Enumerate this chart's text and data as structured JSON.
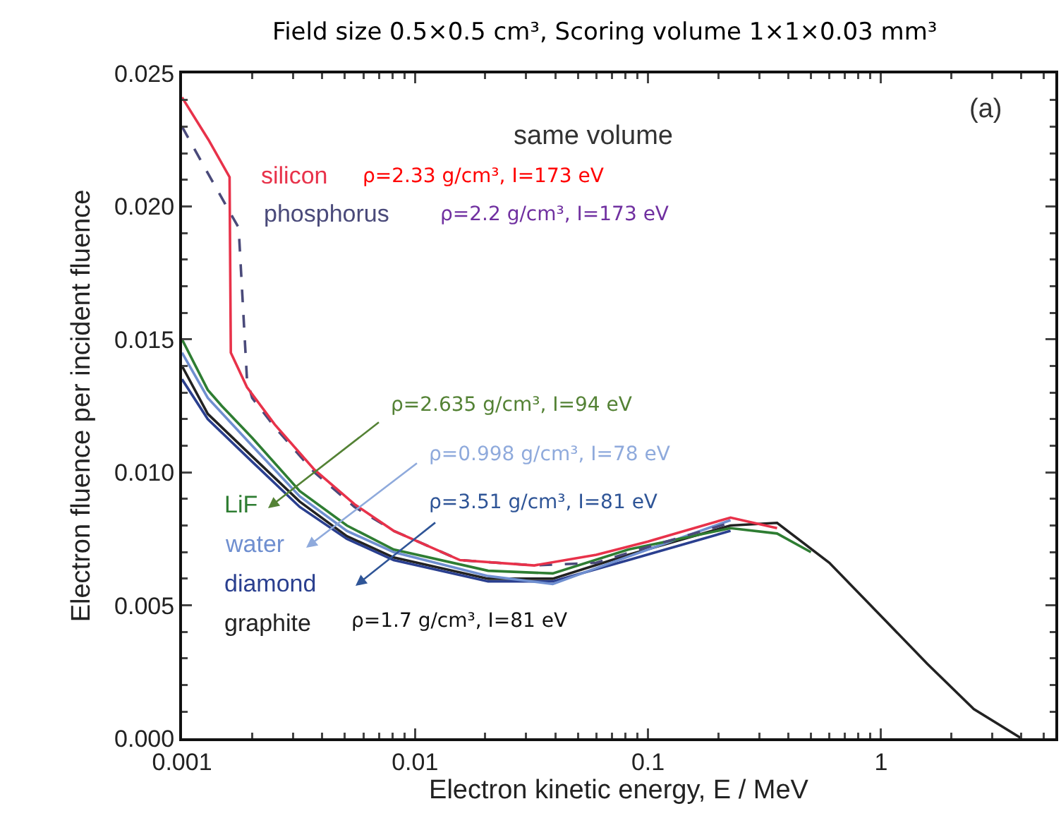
{
  "chart_data": {
    "type": "line",
    "title": "Field size 0.5×0.5 cm³, Scoring volume 1×1×0.03 mm³",
    "xlabel": "Electron kinetic energy, E / MeV",
    "ylabel": "Electron fluence per incident fluence",
    "log": "x",
    "xlim": [
      0.001,
      5.6
    ],
    "xticks": [
      0.001,
      0.01,
      0.1,
      1
    ],
    "ylim": [
      0,
      0.025
    ],
    "yticks": [
      {
        "value": 0,
        "label": "0.000"
      },
      0.005,
      {
        "value": 0.01,
        "label": "0.010"
      },
      0.015,
      {
        "value": 0.02,
        "label": "0.020"
      },
      0.025
    ],
    "grid": false,
    "legend": false,
    "marker": "none",
    "series": [
      {
        "name": "silicon",
        "color": "#e8324a",
        "line_style": "solid",
        "x": [
          0.001,
          0.0013,
          0.0016,
          0.00162,
          0.0019,
          0.0025,
          0.0037,
          0.0055,
          0.0081,
          0.0156,
          0.0325,
          0.06,
          0.1,
          0.226,
          0.358
        ],
        "values": [
          0.0241,
          0.0225,
          0.0211,
          0.0145,
          0.0132,
          0.0118,
          0.0101,
          0.0088,
          0.0078,
          0.0067,
          0.0065,
          0.0069,
          0.0074,
          0.0083,
          0.0079
        ]
      },
      {
        "name": "phosphorus",
        "color": "#4a4a7a",
        "line_style": "dashed",
        "x": [
          0.001,
          0.0013,
          0.0016,
          0.00175,
          0.0019,
          0.002,
          0.0025,
          0.0037,
          0.0055,
          0.0081,
          0.0156,
          0.0325,
          0.06,
          0.1,
          0.226
        ],
        "values": [
          0.023,
          0.0212,
          0.0198,
          0.0192,
          0.0135,
          0.0128,
          0.0117,
          0.01,
          0.0087,
          0.0078,
          0.0067,
          0.0065,
          0.0066,
          0.0072,
          0.0081
        ]
      },
      {
        "name": "LiF",
        "color": "#2e7d32",
        "line_style": "solid",
        "x": [
          0.001,
          0.00129,
          0.00148,
          0.002,
          0.0032,
          0.0051,
          0.0081,
          0.0206,
          0.039,
          0.0824,
          0.226,
          0.358,
          0.5
        ],
        "values": [
          0.015,
          0.0131,
          0.0125,
          0.0113,
          0.0093,
          0.008,
          0.0071,
          0.0063,
          0.0062,
          0.0071,
          0.0079,
          0.0077,
          0.007
        ]
      },
      {
        "name": "water",
        "color": "#6f8fd0",
        "line_style": "solid",
        "x": [
          0.001,
          0.00129,
          0.002,
          0.0032,
          0.0051,
          0.0081,
          0.0206,
          0.039,
          0.06,
          0.1,
          0.226
        ],
        "values": [
          0.0145,
          0.0128,
          0.011,
          0.0091,
          0.0078,
          0.007,
          0.0061,
          0.0058,
          0.0064,
          0.0071,
          0.0082
        ]
      },
      {
        "name": "diamond",
        "color": "#2a3f8f",
        "line_style": "solid",
        "x": [
          0.001,
          0.00129,
          0.002,
          0.0032,
          0.0051,
          0.0081,
          0.0206,
          0.039,
          0.0824,
          0.226
        ],
        "values": [
          0.0135,
          0.012,
          0.0104,
          0.0087,
          0.0075,
          0.0067,
          0.0059,
          0.0059,
          0.0067,
          0.0078
        ]
      },
      {
        "name": "graphite",
        "color": "#222222",
        "line_style": "solid",
        "x": [
          0.001,
          0.00129,
          0.002,
          0.0032,
          0.0051,
          0.0081,
          0.0206,
          0.039,
          0.0824,
          0.226,
          0.358,
          0.6,
          1,
          1.58,
          2.5,
          4
        ],
        "values": [
          0.014,
          0.0122,
          0.0106,
          0.0089,
          0.0076,
          0.0068,
          0.006,
          0.006,
          0.0069,
          0.008,
          0.0081,
          0.0066,
          0.0046,
          0.0028,
          0.0011,
          0.0
        ]
      }
    ],
    "annotations": [
      "same volume",
      "(a)",
      "ρ=2.33 g/cm³, I=173 eV",
      "ρ=2.2 g/cm³, I=173 eV",
      "ρ=2.635 g/cm³, I=94 eV",
      "ρ=0.998 g/cm³, I=78 eV",
      "ρ=3.51 g/cm³, I=81 eV",
      "ρ=1.7 g/cm³, I=81 eV"
    ]
  }
}
